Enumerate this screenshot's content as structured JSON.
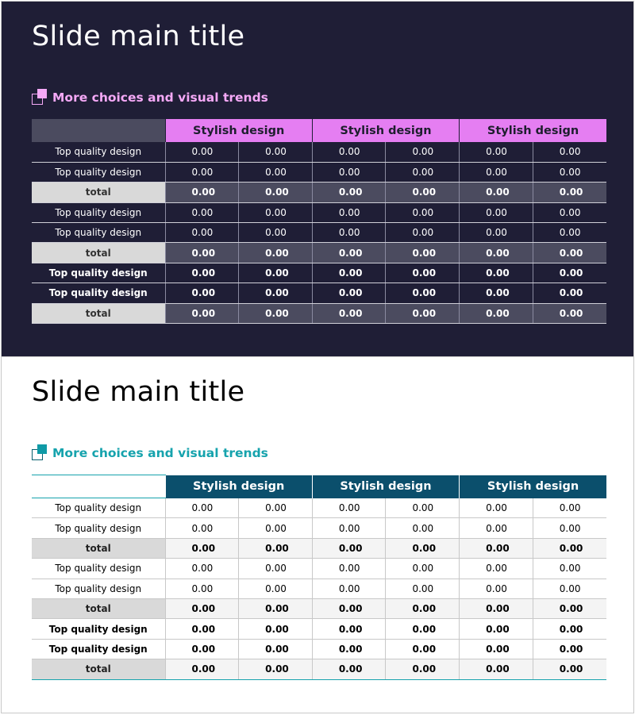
{
  "slides": [
    {
      "theme": "dark",
      "title": "Slide main title",
      "subtitle": "More choices and visual trends",
      "headers": [
        "Stylish design",
        "Stylish design",
        "Stylish design"
      ],
      "rows": [
        {
          "label": "Top quality design",
          "values": [
            "0.00",
            "0.00",
            "0.00",
            "0.00",
            "0.00",
            "0.00"
          ]
        },
        {
          "label": "Top quality design",
          "values": [
            "0.00",
            "0.00",
            "0.00",
            "0.00",
            "0.00",
            "0.00"
          ]
        },
        {
          "label": "total",
          "values": [
            "0.00",
            "0.00",
            "0.00",
            "0.00",
            "0.00",
            "0.00"
          ]
        },
        {
          "label": "Top quality design",
          "values": [
            "0.00",
            "0.00",
            "0.00",
            "0.00",
            "0.00",
            "0.00"
          ]
        },
        {
          "label": "Top quality design",
          "values": [
            "0.00",
            "0.00",
            "0.00",
            "0.00",
            "0.00",
            "0.00"
          ]
        },
        {
          "label": "total",
          "values": [
            "0.00",
            "0.00",
            "0.00",
            "0.00",
            "0.00",
            "0.00"
          ]
        },
        {
          "label": "Top quality design",
          "values": [
            "0.00",
            "0.00",
            "0.00",
            "0.00",
            "0.00",
            "0.00"
          ]
        },
        {
          "label": "Top quality design",
          "values": [
            "0.00",
            "0.00",
            "0.00",
            "0.00",
            "0.00",
            "0.00"
          ]
        },
        {
          "label": "total",
          "values": [
            "0.00",
            "0.00",
            "0.00",
            "0.00",
            "0.00",
            "0.00"
          ]
        }
      ]
    },
    {
      "theme": "light",
      "title": "Slide main title",
      "subtitle": "More choices and visual trends",
      "headers": [
        "Stylish design",
        "Stylish design",
        "Stylish design"
      ],
      "rows": [
        {
          "label": "Top quality design",
          "values": [
            "0.00",
            "0.00",
            "0.00",
            "0.00",
            "0.00",
            "0.00"
          ]
        },
        {
          "label": "Top quality design",
          "values": [
            "0.00",
            "0.00",
            "0.00",
            "0.00",
            "0.00",
            "0.00"
          ]
        },
        {
          "label": "total",
          "values": [
            "0.00",
            "0.00",
            "0.00",
            "0.00",
            "0.00",
            "0.00"
          ]
        },
        {
          "label": "Top quality design",
          "values": [
            "0.00",
            "0.00",
            "0.00",
            "0.00",
            "0.00",
            "0.00"
          ]
        },
        {
          "label": "Top quality design",
          "values": [
            "0.00",
            "0.00",
            "0.00",
            "0.00",
            "0.00",
            "0.00"
          ]
        },
        {
          "label": "total",
          "values": [
            "0.00",
            "0.00",
            "0.00",
            "0.00",
            "0.00",
            "0.00"
          ]
        },
        {
          "label": "Top quality design",
          "values": [
            "0.00",
            "0.00",
            "0.00",
            "0.00",
            "0.00",
            "0.00"
          ]
        },
        {
          "label": "Top quality design",
          "values": [
            "0.00",
            "0.00",
            "0.00",
            "0.00",
            "0.00",
            "0.00"
          ]
        },
        {
          "label": "total",
          "values": [
            "0.00",
            "0.00",
            "0.00",
            "0.00",
            "0.00",
            "0.00"
          ]
        }
      ]
    }
  ],
  "colors": {
    "dark_bg": "#1f1e36",
    "dark_accent": "#e57ef2",
    "light_header": "#0b4f6c",
    "light_accent": "#16a3ad"
  },
  "icons": {
    "subtitle_marker": "overlapping-squares-icon"
  }
}
